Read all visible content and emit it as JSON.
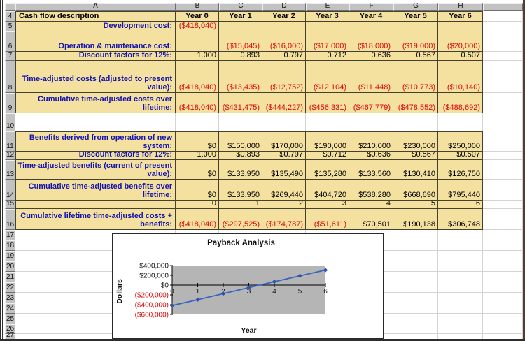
{
  "spreadsheet": {
    "column_headers": [
      "A",
      "B",
      "C",
      "D",
      "E",
      "F",
      "G",
      "H",
      "I"
    ],
    "row_numbers": [
      "4",
      "5",
      "6",
      "7",
      "8",
      "9",
      "10",
      "11",
      "12",
      "13",
      "14",
      "15",
      "16",
      "17",
      "18",
      "19",
      "20",
      "21",
      "22",
      "23",
      "24",
      "25",
      "26",
      "27"
    ],
    "header_row": {
      "row": "4",
      "label": "Cash flow description",
      "values": [
        "Year 0",
        "Year 1",
        "Year 2",
        "Year 3",
        "Year 4",
        "Year 5",
        "Year 6"
      ]
    },
    "data_rows": [
      {
        "row": "5",
        "label": "Development cost:",
        "values": [
          "($418,040)",
          "",
          "",
          "",
          "",
          "",
          ""
        ]
      },
      {
        "row": "6",
        "label": "Operation & maintenance cost:",
        "values": [
          "",
          "($15,045)",
          "($16,000)",
          "($17,000)",
          "($18,000)",
          "($19,000)",
          "($20,000)"
        ]
      },
      {
        "row": "7",
        "label": "Discount factors for 12%:",
        "values": [
          "1.000",
          "0.893",
          "0.797",
          "0.712",
          "0.636",
          "0.567",
          "0.507"
        ]
      },
      {
        "row": "8",
        "label": "Time-adjusted costs (adjusted to present value):",
        "values": [
          "($418,040)",
          "($13,435)",
          "($12,752)",
          "($12,104)",
          "($11,448)",
          "($10,773)",
          "($10,140)"
        ]
      },
      {
        "row": "9",
        "label": "Cumulative time-adjusted costs over lifetime:",
        "values": [
          "($418,040)",
          "($431,475)",
          "($444,227)",
          "($456,331)",
          "($467,779)",
          "($478,552)",
          "($488,692)"
        ]
      },
      {
        "row": "11",
        "label": "Benefits derived from operation of new system:",
        "values": [
          "$0",
          "$150,000",
          "$170,000",
          "$190,000",
          "$210,000",
          "$230,000",
          "$250,000"
        ]
      },
      {
        "row": "12",
        "label": "Discount factors for 12%:",
        "values": [
          "1.000",
          "$0.893",
          "$0.797",
          "$0.712",
          "$0.636",
          "$0.567",
          "$0.507"
        ]
      },
      {
        "row": "13",
        "label": "Time-adjusted benefits (current of present value):",
        "values": [
          "$0",
          "$133,950",
          "$135,490",
          "$135,280",
          "$133,560",
          "$130,410",
          "$126,750"
        ]
      },
      {
        "row": "14",
        "label": "Cumulative time-adjusted benefits over lifetime:",
        "values": [
          "$0",
          "$133,950",
          "$269,440",
          "$404,720",
          "$538,280",
          "$668,690",
          "$795,440"
        ]
      },
      {
        "row": "15",
        "label": "",
        "values": [
          "0",
          "1",
          "2",
          "3",
          "4",
          "5",
          "6"
        ]
      },
      {
        "row": "16",
        "label": "Cumulative lifetime time-adjusted costs + benefits:",
        "values": [
          "($418,040)",
          "($297,525)",
          "($174,787)",
          "($51,611)",
          "$70,501",
          "$190,138",
          "$306,748"
        ]
      }
    ],
    "colors": {
      "cell_fill": "#f4e1a0",
      "label_blue": "#1414ad",
      "negative_red": "#e00505",
      "header_gray": "#c2c2c2"
    }
  },
  "chart_data": {
    "type": "line",
    "title": "Payback Analysis",
    "xlabel": "Year",
    "ylabel": "Dollars",
    "x": [
      0,
      1,
      2,
      3,
      4,
      5,
      6
    ],
    "series": [
      {
        "name": "Cumulative lifetime time-adjusted costs + benefits",
        "values": [
          -418040,
          -297525,
          -174787,
          -51611,
          70501,
          190138,
          306748
        ]
      }
    ],
    "xlim": [
      0,
      6
    ],
    "ylim": [
      -600000,
      400000
    ],
    "ytick_labels": [
      "$400,000",
      "$200,000",
      "$0",
      "($200,000)",
      "($400,000)",
      "($600,000)"
    ],
    "xtick_labels": [
      "0",
      "1",
      "2",
      "3",
      "4",
      "5",
      "6"
    ],
    "legend": "none",
    "grid": "off",
    "line_color": "#3a64c0",
    "marker_color": "#2f55a8",
    "plot_bg": "#b5b5b5",
    "negative_label_color": "#e00505",
    "axis_color": "#000000"
  }
}
